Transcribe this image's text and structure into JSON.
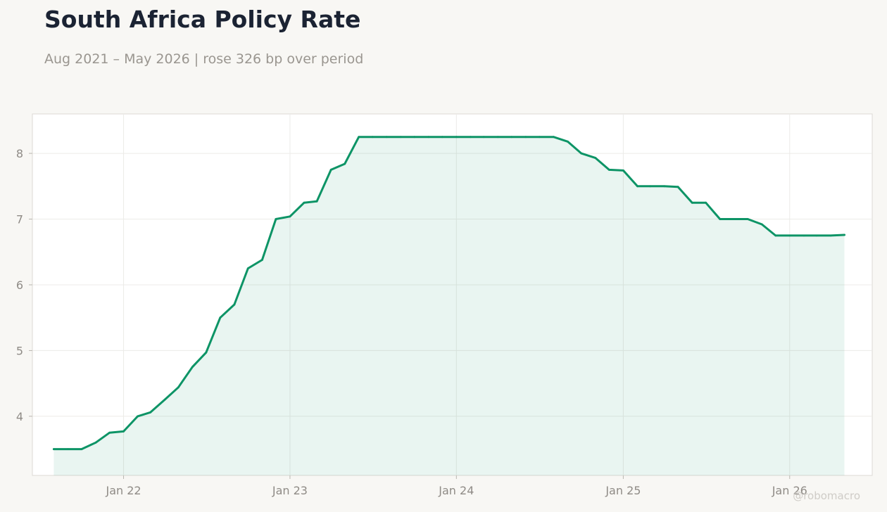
{
  "header": {
    "title": "South Africa Policy Rate",
    "subtitle": "Aug 2021 – May 2026 | rose 326 bp over period"
  },
  "watermark": "@robomacro",
  "colors": {
    "line": "#0d9466",
    "fill": "#0d9466",
    "background": "#f8f7f4",
    "plot_background": "#ffffff",
    "grid": "#ecebe8"
  },
  "chart_data": {
    "type": "area",
    "title": "South Africa Policy Rate",
    "subtitle": "Aug 2021 – May 2026 | rose 326 bp over period",
    "xlabel": "",
    "ylabel": "",
    "x_range": [
      "2021-06-15",
      "2026-07-01"
    ],
    "ylim": [
      3.1,
      8.6
    ],
    "grid": true,
    "y_ticks": [
      4,
      5,
      6,
      7,
      8
    ],
    "x_ticks": [
      {
        "date": "2022-01-01",
        "label": "Jan 22"
      },
      {
        "date": "2023-01-01",
        "label": "Jan 23"
      },
      {
        "date": "2024-01-01",
        "label": "Jan 24"
      },
      {
        "date": "2025-01-01",
        "label": "Jan 25"
      },
      {
        "date": "2026-01-01",
        "label": "Jan 26"
      }
    ],
    "series": [
      {
        "points": [
          [
            "2021-08-01",
            3.5
          ],
          [
            "2021-09-01",
            3.5
          ],
          [
            "2021-10-01",
            3.5
          ],
          [
            "2021-11-01",
            3.6
          ],
          [
            "2021-12-01",
            3.75
          ],
          [
            "2022-01-01",
            3.77
          ],
          [
            "2022-02-01",
            4.0
          ],
          [
            "2022-03-01",
            4.06
          ],
          [
            "2022-04-01",
            4.25
          ],
          [
            "2022-05-01",
            4.44
          ],
          [
            "2022-06-01",
            4.75
          ],
          [
            "2022-07-01",
            4.97
          ],
          [
            "2022-08-01",
            5.5
          ],
          [
            "2022-09-01",
            5.7
          ],
          [
            "2022-10-01",
            6.25
          ],
          [
            "2022-11-01",
            6.38
          ],
          [
            "2022-12-01",
            7.0
          ],
          [
            "2023-01-01",
            7.04
          ],
          [
            "2023-02-01",
            7.25
          ],
          [
            "2023-03-01",
            7.27
          ],
          [
            "2023-04-01",
            7.75
          ],
          [
            "2023-05-01",
            7.84
          ],
          [
            "2023-06-01",
            8.25
          ],
          [
            "2023-07-01",
            8.25
          ],
          [
            "2023-08-01",
            8.25
          ],
          [
            "2023-09-01",
            8.25
          ],
          [
            "2023-10-01",
            8.25
          ],
          [
            "2023-11-01",
            8.25
          ],
          [
            "2023-12-01",
            8.25
          ],
          [
            "2024-01-01",
            8.25
          ],
          [
            "2024-02-01",
            8.25
          ],
          [
            "2024-03-01",
            8.25
          ],
          [
            "2024-04-01",
            8.25
          ],
          [
            "2024-05-01",
            8.25
          ],
          [
            "2024-06-01",
            8.25
          ],
          [
            "2024-07-01",
            8.25
          ],
          [
            "2024-08-01",
            8.25
          ],
          [
            "2024-09-01",
            8.18
          ],
          [
            "2024-10-01",
            8.0
          ],
          [
            "2024-11-01",
            7.93
          ],
          [
            "2024-12-01",
            7.75
          ],
          [
            "2025-01-01",
            7.74
          ],
          [
            "2025-02-01",
            7.5
          ],
          [
            "2025-03-01",
            7.5
          ],
          [
            "2025-04-01",
            7.5
          ],
          [
            "2025-05-01",
            7.49
          ],
          [
            "2025-06-01",
            7.25
          ],
          [
            "2025-07-01",
            7.25
          ],
          [
            "2025-08-01",
            7.0
          ],
          [
            "2025-09-01",
            7.0
          ],
          [
            "2025-10-01",
            7.0
          ],
          [
            "2025-11-01",
            6.92
          ],
          [
            "2025-12-01",
            6.75
          ],
          [
            "2026-01-01",
            6.75
          ],
          [
            "2026-02-01",
            6.75
          ],
          [
            "2026-03-01",
            6.75
          ],
          [
            "2026-04-01",
            6.75
          ],
          [
            "2026-05-01",
            6.76
          ]
        ]
      }
    ]
  }
}
